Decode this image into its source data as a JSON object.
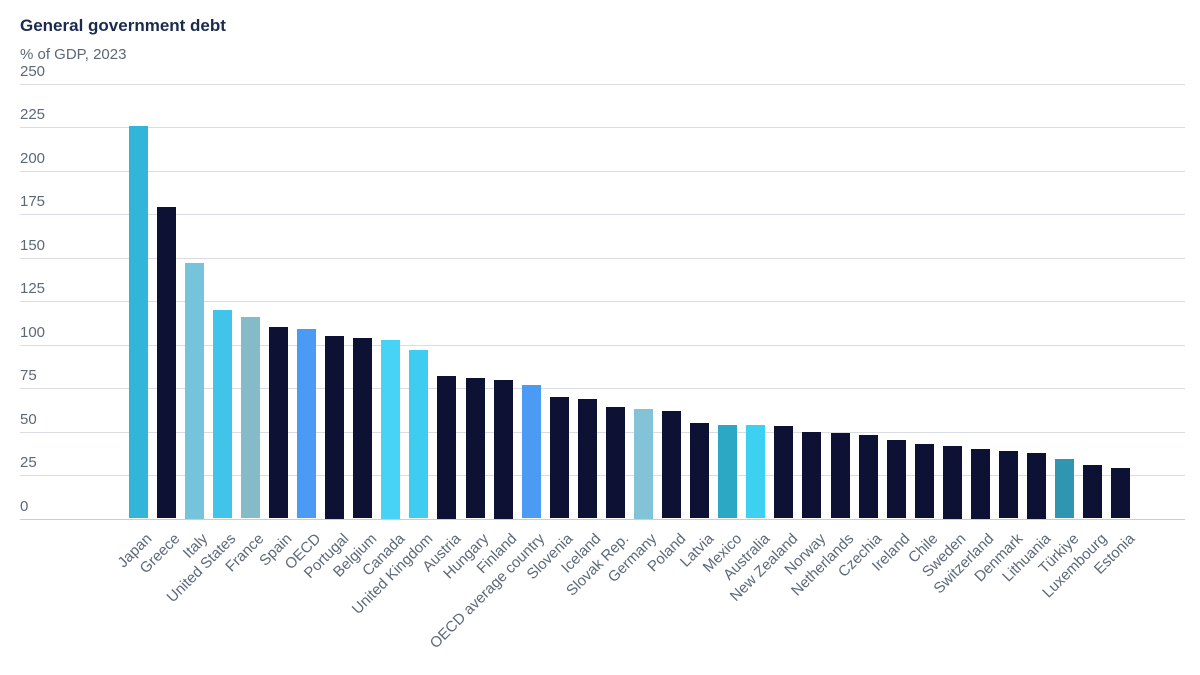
{
  "header": {
    "title": "General government debt",
    "subtitle": "% of GDP, 2023"
  },
  "palette": {
    "dark_navy": "#0d1134",
    "japan_teal": "#31b6d9",
    "italy_light_blue": "#75c4db",
    "us_cyan": "#40c4ea",
    "france_gray_teal": "#85bac9",
    "oecd_azure": "#4b9bf4",
    "canada_light_cyan": "#47d3f6",
    "uk_cyan": "#3fccf1",
    "germany_gray_blue": "#82c3d8",
    "mexico_teal": "#2da8c4",
    "australia_cyan": "#3cd1f1",
    "turkiye_dark_teal": "#3095b0",
    "gridline_gray": "#d9dde3",
    "text_gray": "#5d6878",
    "title_navy": "#1b2b4d"
  },
  "chart_data": {
    "type": "bar",
    "title": "General government debt",
    "subtitle": "% of GDP, 2023",
    "xlabel": "",
    "ylabel": "% of GDP",
    "ylim": [
      0,
      250
    ],
    "ytick_step": 25,
    "yticks": [
      0,
      25,
      50,
      75,
      100,
      125,
      150,
      175,
      200,
      225,
      250
    ],
    "grid": true,
    "legend": false,
    "categories": [
      "Japan",
      "Greece",
      "Italy",
      "United States",
      "France",
      "Spain",
      "OECD",
      "Portugal",
      "Belgium",
      "Canada",
      "United Kingdom",
      "Austria",
      "Hungary",
      "Finland",
      "OECD average country",
      "Slovenia",
      "Iceland",
      "Slovak Rep.",
      "Germany",
      "Poland",
      "Latvia",
      "Mexico",
      "Australia",
      "New Zealand",
      "Norway",
      "Netherlands",
      "Czechia",
      "Ireland",
      "Chile",
      "Sweden",
      "Switzerland",
      "Denmark",
      "Lithuania",
      "Türkiye",
      "Luxembourg",
      "Estonia"
    ],
    "values": [
      226,
      179,
      147,
      120,
      116,
      110,
      109,
      105,
      104,
      103,
      97,
      82,
      81,
      80,
      77,
      70,
      69,
      64,
      63,
      62,
      55,
      54,
      54,
      53,
      50,
      49,
      48,
      45,
      43,
      42,
      40,
      39,
      38,
      34,
      31,
      29
    ],
    "bar_colors": [
      "#31b6d9",
      "#0d1134",
      "#75c4db",
      "#40c4ea",
      "#85bac9",
      "#0d1134",
      "#4b9bf4",
      "#0d1134",
      "#0d1134",
      "#47d3f6",
      "#3fccf1",
      "#0d1134",
      "#0d1134",
      "#0d1134",
      "#4b9bf4",
      "#0d1134",
      "#0d1134",
      "#0d1134",
      "#82c3d8",
      "#0d1134",
      "#0d1134",
      "#2da8c4",
      "#3cd1f1",
      "#0d1134",
      "#0d1134",
      "#0d1134",
      "#0d1134",
      "#0d1134",
      "#0d1134",
      "#0d1134",
      "#0d1134",
      "#0d1134",
      "#0d1134",
      "#3095b0",
      "#0d1134",
      "#0d1134"
    ]
  }
}
